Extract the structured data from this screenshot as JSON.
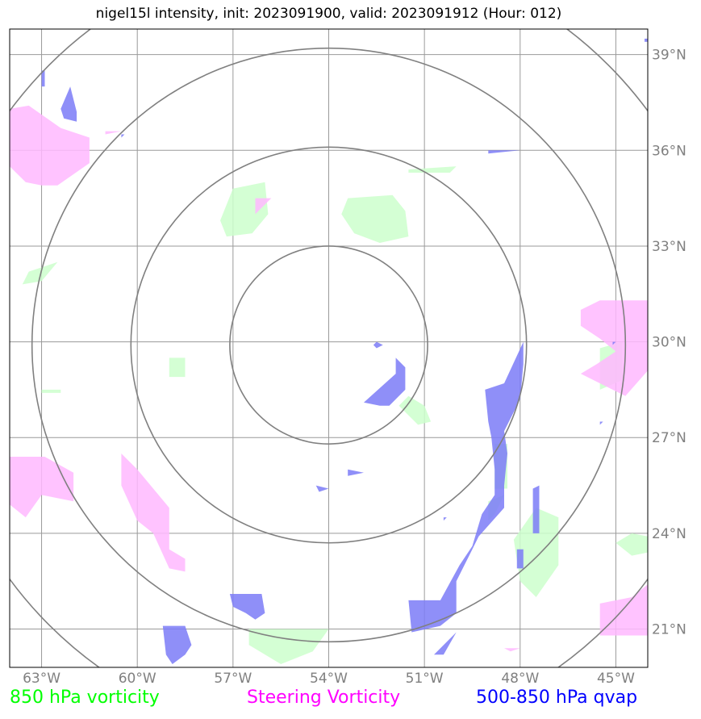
{
  "chart_data": {
    "type": "map",
    "title": "nigel15l intensity, init: 2023091900, valid: 2023091912 (Hour: 012)",
    "xlim": [
      -64.0,
      -44.0
    ],
    "ylim": [
      19.8,
      39.8
    ],
    "lon_ticks": [
      -63,
      -60,
      -57,
      -54,
      -51,
      -48,
      -45
    ],
    "lon_labels": [
      "63°W",
      "60°W",
      "57°W",
      "54°W",
      "51°W",
      "48°W",
      "45°W"
    ],
    "lat_ticks": [
      39,
      36,
      33,
      30,
      27,
      24,
      21
    ],
    "lat_labels": [
      "39°N",
      "36°N",
      "33°N",
      "30°N",
      "27°N",
      "24°N",
      "21°N"
    ],
    "grid": true,
    "range_rings": {
      "center": [
        -54.0,
        29.9
      ],
      "radii_deg": [
        3.1,
        6.2,
        9.3,
        12.4
      ],
      "color": "#808080"
    },
    "legend": [
      {
        "label": "850 hPa vorticity",
        "color": "#00ff00"
      },
      {
        "label": "Steering Vorticity",
        "color": "#ff00ff"
      },
      {
        "label": "500-850 hPa qvap",
        "color": "#0000ff"
      }
    ],
    "series": [
      {
        "name": "850 hPa vorticity",
        "color": "#ccffcc",
        "polygons": [
          [
            [
              -57.0,
              34.8
            ],
            [
              -56.0,
              35.0
            ],
            [
              -55.9,
              34.0
            ],
            [
              -56.4,
              33.4
            ],
            [
              -57.2,
              33.3
            ],
            [
              -57.4,
              33.8
            ]
          ],
          [
            [
              -53.4,
              34.5
            ],
            [
              -52.0,
              34.6
            ],
            [
              -51.6,
              34.1
            ],
            [
              -51.5,
              33.3
            ],
            [
              -52.4,
              33.1
            ],
            [
              -53.2,
              33.4
            ],
            [
              -53.6,
              34.0
            ]
          ],
          [
            [
              -51.5,
              35.4
            ],
            [
              -50.0,
              35.5
            ],
            [
              -50.2,
              35.3
            ],
            [
              -51.5,
              35.3
            ]
          ],
          [
            [
              -63.4,
              32.2
            ],
            [
              -62.5,
              32.5
            ],
            [
              -63.0,
              31.9
            ],
            [
              -63.6,
              31.8
            ]
          ],
          [
            [
              -59.0,
              29.5
            ],
            [
              -58.5,
              29.5
            ],
            [
              -58.5,
              28.9
            ],
            [
              -59.0,
              28.9
            ]
          ],
          [
            [
              -63.0,
              28.5
            ],
            [
              -62.4,
              28.5
            ],
            [
              -62.4,
              28.4
            ],
            [
              -63.0,
              28.4
            ]
          ],
          [
            [
              -51.5,
              28.3
            ],
            [
              -51.0,
              28.0
            ],
            [
              -50.8,
              27.5
            ],
            [
              -51.2,
              27.4
            ],
            [
              -51.8,
              28.0
            ]
          ],
          [
            [
              -48.8,
              26.8
            ],
            [
              -48.4,
              26.8
            ],
            [
              -48.4,
              25.4
            ],
            [
              -48.8,
              25.4
            ]
          ],
          [
            [
              -49.0,
              25.0
            ],
            [
              -48.5,
              25.2
            ],
            [
              -48.8,
              24.6
            ],
            [
              -49.0,
              24.4
            ]
          ],
          [
            [
              -45.5,
              29.8
            ],
            [
              -44.8,
              30.0
            ],
            [
              -44.8,
              28.8
            ],
            [
              -45.5,
              28.5
            ]
          ],
          [
            [
              -47.5,
              24.8
            ],
            [
              -46.8,
              24.5
            ],
            [
              -46.8,
              23.0
            ],
            [
              -47.5,
              22.0
            ],
            [
              -48.0,
              22.5
            ],
            [
              -48.2,
              23.8
            ]
          ],
          [
            [
              -44.5,
              24.0
            ],
            [
              -44.0,
              23.9
            ],
            [
              -44.0,
              23.4
            ],
            [
              -44.5,
              23.3
            ],
            [
              -45.0,
              23.7
            ]
          ],
          [
            [
              -56.5,
              21.0
            ],
            [
              -54.0,
              21.0
            ],
            [
              -54.5,
              20.3
            ],
            [
              -55.5,
              19.9
            ],
            [
              -56.5,
              20.5
            ]
          ]
        ]
      },
      {
        "name": "Steering Vorticity",
        "color": "#ffb8ff",
        "polygons": [
          [
            [
              -64.0,
              37.3
            ],
            [
              -63.4,
              37.4
            ],
            [
              -62.4,
              36.7
            ],
            [
              -61.5,
              36.4
            ],
            [
              -61.5,
              35.6
            ],
            [
              -62.5,
              34.9
            ],
            [
              -63.0,
              34.9
            ],
            [
              -63.5,
              35.0
            ],
            [
              -64.0,
              35.5
            ]
          ],
          [
            [
              -56.3,
              34.5
            ],
            [
              -55.8,
              34.5
            ],
            [
              -56.3,
              34.0
            ]
          ],
          [
            [
              -61.0,
              36.6
            ],
            [
              -60.5,
              36.6
            ],
            [
              -61.0,
              36.5
            ]
          ],
          [
            [
              -45.5,
              31.3
            ],
            [
              -44.0,
              31.3
            ],
            [
              -44.0,
              29.1
            ],
            [
              -44.7,
              28.3
            ],
            [
              -45.5,
              28.7
            ],
            [
              -46.1,
              29.0
            ],
            [
              -45.6,
              29.3
            ],
            [
              -45.0,
              29.7
            ],
            [
              -45.5,
              30.1
            ],
            [
              -46.1,
              30.5
            ],
            [
              -46.1,
              31.0
            ]
          ],
          [
            [
              -64.0,
              26.4
            ],
            [
              -62.9,
              26.4
            ],
            [
              -62.0,
              25.9
            ],
            [
              -62.0,
              25.0
            ],
            [
              -63.0,
              25.2
            ],
            [
              -63.5,
              24.5
            ],
            [
              -64.0,
              24.9
            ]
          ],
          [
            [
              -60.5,
              26.5
            ],
            [
              -60.0,
              26.0
            ],
            [
              -59.0,
              24.8
            ],
            [
              -59.0,
              23.5
            ],
            [
              -58.5,
              23.2
            ],
            [
              -58.5,
              22.8
            ],
            [
              -59.0,
              22.9
            ],
            [
              -59.5,
              24.0
            ],
            [
              -60.0,
              24.4
            ],
            [
              -60.5,
              25.5
            ]
          ],
          [
            [
              -44.5,
              22.0
            ],
            [
              -44.0,
              22.4
            ],
            [
              -44.0,
              20.8
            ],
            [
              -45.5,
              20.8
            ],
            [
              -45.5,
              21.8
            ]
          ],
          [
            [
              -48.5,
              20.4
            ],
            [
              -48.0,
              20.4
            ],
            [
              -48.3,
              20.3
            ]
          ]
        ]
      },
      {
        "name": "500-850 hPa qvap",
        "color": "#7b7bf7",
        "polygons": [
          [
            [
              -62.1,
              38.0
            ],
            [
              -61.9,
              37.2
            ],
            [
              -61.9,
              36.9
            ],
            [
              -62.3,
              37.0
            ],
            [
              -62.4,
              37.3
            ]
          ],
          [
            [
              -63.0,
              38.5
            ],
            [
              -62.9,
              38.5
            ],
            [
              -62.9,
              38.0
            ],
            [
              -63.0,
              38.0
            ]
          ],
          [
            [
              -60.5,
              36.5
            ],
            [
              -60.4,
              36.5
            ],
            [
              -60.5,
              36.4
            ]
          ],
          [
            [
              -49.0,
              36.0
            ],
            [
              -48.0,
              36.0
            ],
            [
              -49.0,
              35.9
            ]
          ],
          [
            [
              -44.1,
              39.5
            ],
            [
              -44.0,
              39.5
            ],
            [
              -44.0,
              39.4
            ],
            [
              -44.1,
              39.4
            ]
          ],
          [
            [
              -52.5,
              30.0
            ],
            [
              -52.3,
              29.9
            ],
            [
              -52.5,
              29.8
            ],
            [
              -52.6,
              29.9
            ]
          ],
          [
            [
              -51.9,
              29.5
            ],
            [
              -51.6,
              29.2
            ],
            [
              -51.6,
              28.5
            ],
            [
              -52.1,
              28.0
            ],
            [
              -52.4,
              28.0
            ],
            [
              -52.9,
              28.1
            ],
            [
              -51.9,
              29.0
            ]
          ],
          [
            [
              -47.9,
              30.0
            ],
            [
              -47.9,
              29.3
            ],
            [
              -48.0,
              28.2
            ],
            [
              -48.5,
              27.2
            ],
            [
              -48.4,
              26.5
            ],
            [
              -48.5,
              25.5
            ],
            [
              -48.5,
              24.8
            ],
            [
              -49.3,
              23.9
            ],
            [
              -49.5,
              23.5
            ],
            [
              -50.0,
              22.5
            ],
            [
              -50.0,
              21.5
            ],
            [
              -50.5,
              21.1
            ],
            [
              -51.4,
              20.9
            ],
            [
              -51.5,
              21.9
            ],
            [
              -50.5,
              21.9
            ],
            [
              -49.9,
              23.0
            ],
            [
              -49.5,
              23.6
            ],
            [
              -49.2,
              24.6
            ],
            [
              -48.8,
              25.2
            ],
            [
              -48.8,
              26.0
            ],
            [
              -48.9,
              27.0
            ],
            [
              -49.0,
              27.5
            ],
            [
              -49.1,
              28.5
            ],
            [
              -48.5,
              28.7
            ]
          ],
          [
            [
              -47.6,
              25.4
            ],
            [
              -47.4,
              25.5
            ],
            [
              -47.4,
              24.0
            ],
            [
              -47.6,
              24.0
            ]
          ],
          [
            [
              -48.1,
              23.5
            ],
            [
              -47.9,
              23.5
            ],
            [
              -47.9,
              22.9
            ],
            [
              -48.1,
              22.9
            ]
          ],
          [
            [
              -50.4,
              20.2
            ],
            [
              -50.0,
              20.9
            ],
            [
              -50.6,
              20.3
            ],
            [
              -50.7,
              20.2
            ]
          ],
          [
            [
              -57.1,
              22.1
            ],
            [
              -56.1,
              22.1
            ],
            [
              -56.0,
              21.5
            ],
            [
              -56.3,
              21.3
            ],
            [
              -56.6,
              21.5
            ],
            [
              -57.0,
              21.7
            ]
          ],
          [
            [
              -59.2,
              21.1
            ],
            [
              -58.5,
              21.1
            ],
            [
              -58.3,
              20.5
            ],
            [
              -58.5,
              20.2
            ],
            [
              -58.9,
              19.9
            ],
            [
              -59.1,
              20.2
            ]
          ],
          [
            [
              -54.4,
              25.5
            ],
            [
              -54.0,
              25.4
            ],
            [
              -54.3,
              25.3
            ]
          ],
          [
            [
              -53.4,
              26.0
            ],
            [
              -52.9,
              25.9
            ],
            [
              -53.4,
              25.8
            ]
          ],
          [
            [
              -45.1,
              30.0
            ],
            [
              -45.0,
              30.0
            ],
            [
              -45.1,
              29.9
            ]
          ],
          [
            [
              -50.4,
              24.5
            ],
            [
              -50.3,
              24.5
            ],
            [
              -50.4,
              24.4
            ]
          ],
          [
            [
              -45.5,
              27.5
            ],
            [
              -45.4,
              27.5
            ],
            [
              -45.5,
              27.4
            ]
          ]
        ]
      }
    ]
  }
}
